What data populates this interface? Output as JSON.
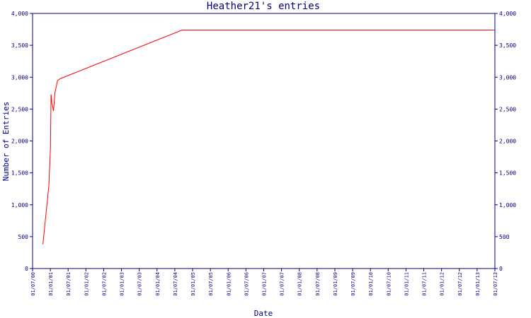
{
  "chart_data": {
    "type": "line",
    "title": "Heather21's entries",
    "xlabel": "Date",
    "ylabel": "Number of Entries",
    "ylim": [
      0,
      4000
    ],
    "y_ticks": [
      0,
      500,
      1000,
      1500,
      2000,
      2500,
      3000,
      3500,
      4000
    ],
    "y_tick_labels": [
      "0",
      "500",
      "1,000",
      "1,500",
      "2,000",
      "2,500",
      "3,000",
      "3,500",
      "4,000"
    ],
    "y_axes": [
      "left",
      "right"
    ],
    "x_tick_labels": [
      "01/07/00",
      "01/01/01",
      "01/07/01",
      "01/01/02",
      "01/07/02",
      "01/01/03",
      "01/07/03",
      "01/01/04",
      "01/07/04",
      "01/01/05",
      "01/07/05",
      "01/01/06",
      "01/07/06",
      "01/01/07",
      "01/07/07",
      "01/01/08",
      "01/07/08",
      "01/01/09",
      "01/07/09",
      "01/01/10",
      "01/07/10",
      "01/01/11",
      "01/07/11",
      "01/01/12",
      "01/07/12",
      "01/01/13",
      "01/07/13"
    ],
    "grid": false,
    "colors": {
      "line": "#ff0000",
      "axes": "#000080",
      "background": "#ffffff"
    },
    "series": [
      {
        "x": [
          "2000-10-15",
          "2000-12-15",
          "2001-01-01",
          "2001-01-07",
          "2001-01-15",
          "2001-02-01",
          "2001-02-15",
          "2001-03-15",
          "2001-04-15",
          "2004-09-15",
          "2013-07-01"
        ],
        "values": [
          380,
          1300,
          1900,
          2730,
          2600,
          2470,
          2750,
          2950,
          2980,
          3740,
          3740
        ]
      }
    ]
  }
}
